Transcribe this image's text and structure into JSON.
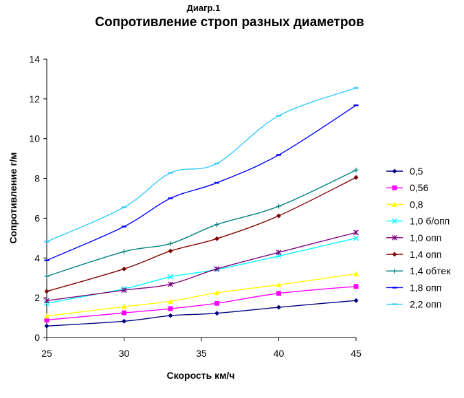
{
  "caption": "Диагр.1",
  "chart_data": {
    "type": "line",
    "title": "Сопротивление строп разных диаметров",
    "xlabel": "Скорость км/ч",
    "ylabel": "Сопротивление г/м",
    "xlim": [
      25,
      45
    ],
    "ylim": [
      0,
      14
    ],
    "x_ticks": [
      "25",
      "30",
      "35",
      "40",
      "45"
    ],
    "y_ticks": [
      "0",
      "2",
      "4",
      "6",
      "8",
      "10",
      "12",
      "14"
    ],
    "grid": false,
    "legend_position": "right",
    "x": [
      25,
      30,
      33,
      36,
      40,
      45
    ],
    "series": [
      {
        "name": "0,5",
        "color": "#000080",
        "marker": "diamond",
        "values": [
          0.58,
          0.82,
          1.1,
          1.22,
          1.52,
          1.86
        ]
      },
      {
        "name": "0,56",
        "color": "#ff00ff",
        "marker": "square",
        "values": [
          0.88,
          1.24,
          1.45,
          1.72,
          2.22,
          2.57
        ]
      },
      {
        "name": "0,8",
        "color": "#ffff00",
        "marker": "triangle",
        "values": [
          1.08,
          1.55,
          1.82,
          2.25,
          2.65,
          3.2
        ]
      },
      {
        "name": "1,0 б/опп",
        "color": "#00ffff",
        "marker": "x",
        "values": [
          1.72,
          2.45,
          3.05,
          3.42,
          4.1,
          5.0
        ]
      },
      {
        "name": "1,0 опп",
        "color": "#800080",
        "marker": "star",
        "values": [
          1.85,
          2.38,
          2.68,
          3.45,
          4.28,
          5.28
        ]
      },
      {
        "name": "1,4 опп",
        "color": "#800000",
        "marker": "diamond",
        "values": [
          2.32,
          3.45,
          4.35,
          4.97,
          6.12,
          8.05
        ]
      },
      {
        "name": "1,4 обтек",
        "color": "#008080",
        "marker": "plus",
        "values": [
          3.08,
          4.32,
          4.72,
          5.68,
          6.6,
          8.42
        ]
      },
      {
        "name": "1,8 опп",
        "color": "#0000ff",
        "marker": "dash",
        "values": [
          3.88,
          5.58,
          7.0,
          7.78,
          9.18,
          11.68
        ]
      },
      {
        "name": "2,2 опп",
        "color": "#33ccff",
        "marker": "dash",
        "values": [
          4.82,
          6.55,
          8.28,
          8.75,
          11.15,
          12.55
        ]
      }
    ]
  }
}
